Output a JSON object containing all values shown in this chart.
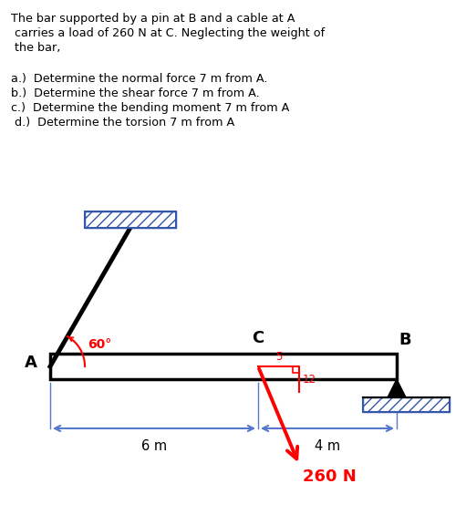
{
  "text_problem_line1": "The bar supported by a pin at B and a cable at A",
  "text_problem_line2": " carries a load of 260 N at C. Neglecting the weight of",
  "text_problem_line3": " the bar,",
  "questions": [
    "a.)  Determine the normal force 7 m from A.",
    "b.)  Determine the shear force 7 m from A.",
    "c.)  Determine the bending moment 7 m from A",
    " d.)  Determine the torsion 7 m from A"
  ],
  "label_A": "A",
  "label_B": "B",
  "label_C": "C",
  "angle_label": "60°",
  "dist_AC": "6 m",
  "dist_CB": "4 m",
  "load_label": "260 N",
  "ratio_horiz": "5",
  "ratio_vert": "12",
  "bg_color": "#ffffff",
  "bar_color": "#000000",
  "cable_color": "#000000",
  "angle_color": "#ff0000",
  "load_color": "#ff0000",
  "dim_color": "#5577cc",
  "hatch_color": "#000000",
  "wall_hatch_color": "#5577cc"
}
